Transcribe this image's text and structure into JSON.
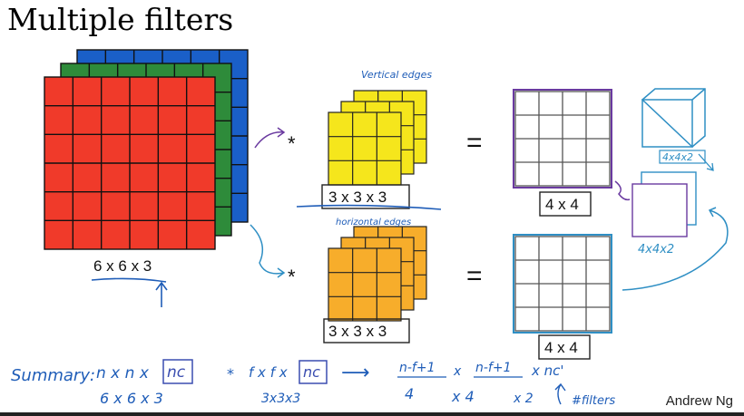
{
  "title": "Multiple filters",
  "author": "Andrew Ng",
  "input": {
    "label": "6 x 6 x 3",
    "size": 6,
    "colors": [
      "#1a5fc8",
      "#2e8b3a",
      "#f03a2a"
    ]
  },
  "filter_vertical": {
    "note": "Vertical edges",
    "label": "3 x 3 x 3",
    "size": 3,
    "color": "#f5e61c"
  },
  "filter_horizontal": {
    "note": "horizontal edges",
    "label": "3 x 3 x 3",
    "size": 3,
    "color": "#f7ad2b"
  },
  "operator": "*",
  "equals": "=",
  "output_top": {
    "label": "4 x 4",
    "size": 4
  },
  "output_bottom": {
    "label": "4 x 4",
    "size": 4
  },
  "stack_top_label": "4x4x2",
  "stack_bottom_label": "4x4x2",
  "summary": {
    "prefix": "Summary:",
    "input_expr": "n x n x",
    "nc": "nc",
    "times": "*",
    "filter_expr": "f x f x",
    "arrow": "⟶",
    "out_num": "n-f+1",
    "x_sep": "x",
    "out_tail": "x nc'",
    "input_values": "6 x 6 x 3",
    "filter_values": "3x3x3",
    "out_v1": "4",
    "out_v2": "x   4",
    "out_v3": "x 2",
    "filters_note": "#filters"
  }
}
